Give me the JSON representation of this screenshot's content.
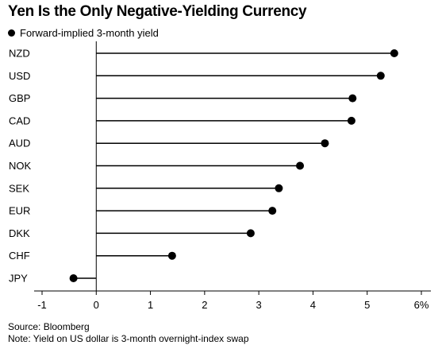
{
  "chart_data": {
    "type": "dot",
    "title": "Yen Is the Only Negative-Yielding Currency",
    "legend": {
      "label": "Forward-implied 3-month yield",
      "marker": "filled-circle",
      "placement": "top-left"
    },
    "categories": [
      "NZD",
      "USD",
      "GBP",
      "CAD",
      "AUD",
      "NOK",
      "SEK",
      "EUR",
      "DKK",
      "CHF",
      "JPY"
    ],
    "values": [
      5.5,
      5.25,
      4.73,
      4.71,
      4.22,
      3.76,
      3.37,
      3.25,
      2.85,
      1.4,
      -0.42
    ],
    "x_ticks": [
      "-1",
      "0",
      "1",
      "2",
      "3",
      "4",
      "5",
      "6%"
    ],
    "xlim": [
      -1,
      6
    ],
    "grid": false,
    "colors": {
      "marker": "#000000",
      "stem": "#000000",
      "axis": "#000000",
      "text": "#000000"
    }
  },
  "source": "Source: Bloomberg",
  "note": "Note: Yield on US dollar is 3-month overnight-index swap"
}
